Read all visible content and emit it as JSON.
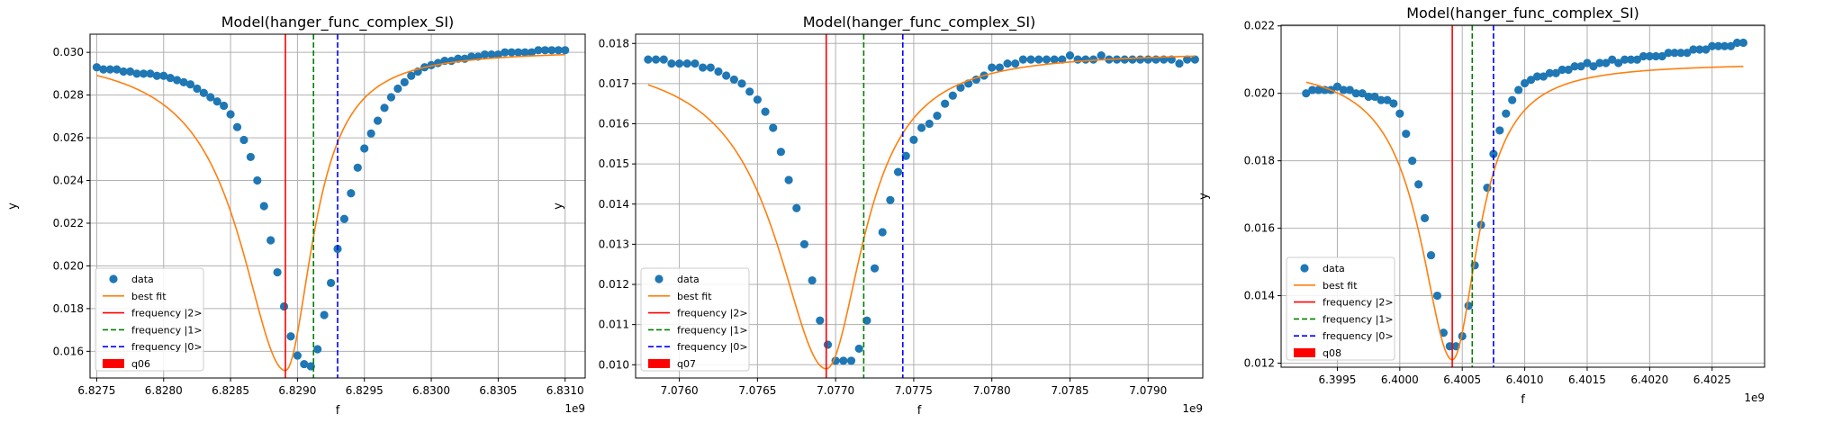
{
  "chart_data": [
    {
      "type": "scatter",
      "title": "Model(hanger_func_complex_SI)",
      "xlabel": "f",
      "ylabel": "y",
      "offset_label": "1e9",
      "xlim": [
        6.82745,
        6.83115
      ],
      "ylim": [
        0.01475,
        0.03085
      ],
      "xticks": [
        6.8275,
        6.828,
        6.8285,
        6.829,
        6.8295,
        6.83,
        6.8305,
        6.831
      ],
      "xtick_labels": [
        "6.8275",
        "6.8280",
        "6.8285",
        "6.8290",
        "6.8295",
        "6.8300",
        "6.8305",
        "6.8310"
      ],
      "yticks": [
        0.016,
        0.018,
        0.02,
        0.022,
        0.024,
        0.026,
        0.028,
        0.03
      ],
      "ytick_labels": [
        "0.016",
        "0.018",
        "0.020",
        "0.022",
        "0.024",
        "0.026",
        "0.028",
        "0.030"
      ],
      "grid": true,
      "legend_position": "lower-left",
      "legend": [
        {
          "label": "data",
          "kind": "marker",
          "color": "#1f77b4"
        },
        {
          "label": "best fit",
          "kind": "line",
          "color": "#ff7f0e"
        },
        {
          "label": "frequency |2>",
          "kind": "line",
          "color": "#ff0000"
        },
        {
          "label": "frequency |1>",
          "kind": "dashed",
          "color": "#008000"
        },
        {
          "label": "frequency |0>",
          "kind": "dashed",
          "color": "#0000ff"
        },
        {
          "label": "q06",
          "kind": "patch",
          "color": "#ff0000"
        }
      ],
      "vlines": [
        {
          "name": "frequency |2>",
          "x": 6.82891,
          "color": "#ff0000",
          "dashed": false
        },
        {
          "name": "frequency |1>",
          "x": 6.82912,
          "color": "#008000",
          "dashed": true
        },
        {
          "name": "frequency |0>",
          "x": 6.8293,
          "color": "#0000ff",
          "dashed": true
        }
      ],
      "fit": {
        "f0": 6.82891,
        "ymin": 0.0151,
        "ymax": 0.0301,
        "hw": 0.00033,
        "skew": 0.25,
        "lin_left": 0.0,
        "lin_right": 0.0,
        "x_start": 6.8275,
        "x_end": 6.831
      },
      "data": {
        "x": [
          6.8275,
          6.82755,
          6.8276,
          6.82765,
          6.8277,
          6.82775,
          6.8278,
          6.82785,
          6.8279,
          6.82795,
          6.828,
          6.82805,
          6.8281,
          6.82815,
          6.8282,
          6.82825,
          6.8283,
          6.82835,
          6.8284,
          6.82845,
          6.8285,
          6.82855,
          6.8286,
          6.82865,
          6.8287,
          6.82875,
          6.8288,
          6.82885,
          6.8289,
          6.82895,
          6.829,
          6.82905,
          6.8291,
          6.82915,
          6.8292,
          6.82925,
          6.8293,
          6.82935,
          6.8294,
          6.82945,
          6.8295,
          6.82955,
          6.8296,
          6.82965,
          6.8297,
          6.82975,
          6.8298,
          6.82985,
          6.8299,
          6.82995,
          6.83,
          6.83005,
          6.8301,
          6.83015,
          6.8302,
          6.83025,
          6.8303,
          6.83035,
          6.8304,
          6.83045,
          6.8305,
          6.83055,
          6.8306,
          6.83065,
          6.8307,
          6.83075,
          6.8308,
          6.83085,
          6.8309,
          6.83095,
          6.831
        ],
        "y": [
          0.0293,
          0.0292,
          0.0292,
          0.0292,
          0.0291,
          0.0291,
          0.029,
          0.029,
          0.029,
          0.0289,
          0.0289,
          0.0288,
          0.0287,
          0.0286,
          0.0285,
          0.0283,
          0.0281,
          0.0279,
          0.0277,
          0.0275,
          0.0271,
          0.0265,
          0.0259,
          0.0251,
          0.024,
          0.0228,
          0.0212,
          0.0197,
          0.0181,
          0.0167,
          0.0158,
          0.0154,
          0.0153,
          0.0161,
          0.0177,
          0.0192,
          0.0208,
          0.0222,
          0.0234,
          0.0246,
          0.0255,
          0.0262,
          0.0268,
          0.0274,
          0.0279,
          0.0283,
          0.0286,
          0.0289,
          0.0291,
          0.0293,
          0.0294,
          0.0295,
          0.0296,
          0.0296,
          0.0297,
          0.0297,
          0.0298,
          0.0298,
          0.0299,
          0.0299,
          0.0299,
          0.03,
          0.03,
          0.03,
          0.03,
          0.03,
          0.0301,
          0.0301,
          0.0301,
          0.0301,
          0.0301
        ]
      }
    },
    {
      "type": "scatter",
      "title": "Model(hanger_func_complex_SI)",
      "xlabel": "f",
      "ylabel": "y",
      "offset_label": "1e9",
      "xlim": [
        7.07572,
        7.07935
      ],
      "ylim": [
        0.00967,
        0.01823
      ],
      "xticks": [
        7.076,
        7.0765,
        7.077,
        7.0775,
        7.078,
        7.0785,
        7.079
      ],
      "xtick_labels": [
        "7.0760",
        "7.0765",
        "7.0770",
        "7.0775",
        "7.0780",
        "7.0785",
        "7.0790"
      ],
      "yticks": [
        0.01,
        0.011,
        0.012,
        0.013,
        0.014,
        0.015,
        0.016,
        0.017,
        0.018
      ],
      "ytick_labels": [
        "0.010",
        "0.011",
        "0.012",
        "0.013",
        "0.014",
        "0.015",
        "0.016",
        "0.017",
        "0.018"
      ],
      "grid": true,
      "legend_position": "lower-left",
      "legend": [
        {
          "label": "data",
          "kind": "marker",
          "color": "#1f77b4"
        },
        {
          "label": "best fit",
          "kind": "line",
          "color": "#ff7f0e"
        },
        {
          "label": "frequency |2>",
          "kind": "line",
          "color": "#ff0000"
        },
        {
          "label": "frequency |1>",
          "kind": "dashed",
          "color": "#008000"
        },
        {
          "label": "frequency |0>",
          "kind": "dashed",
          "color": "#0000ff"
        },
        {
          "label": "q07",
          "kind": "patch",
          "color": "#ff0000"
        }
      ],
      "vlines": [
        {
          "name": "frequency |2>",
          "x": 7.07694,
          "color": "#ff0000",
          "dashed": false
        },
        {
          "name": "frequency |1>",
          "x": 7.07718,
          "color": "#008000",
          "dashed": true
        },
        {
          "name": "frequency |0>",
          "x": 7.07743,
          "color": "#0000ff",
          "dashed": true
        }
      ],
      "fit": {
        "f0": 7.07694,
        "ymin": 0.0099,
        "ymax": 0.0178,
        "hw": 0.00034,
        "skew": 0.15,
        "lin_left": 0.0,
        "lin_right": 0.0,
        "x_start": 7.0758,
        "x_end": 7.0793
      },
      "data": {
        "x": [
          7.0758,
          7.07585,
          7.0759,
          7.07595,
          7.076,
          7.07605,
          7.0761,
          7.07615,
          7.0762,
          7.07625,
          7.0763,
          7.07635,
          7.0764,
          7.07645,
          7.0765,
          7.07655,
          7.0766,
          7.07665,
          7.0767,
          7.07675,
          7.0768,
          7.07685,
          7.0769,
          7.07695,
          7.077,
          7.07705,
          7.0771,
          7.07715,
          7.0772,
          7.07725,
          7.0773,
          7.07735,
          7.0774,
          7.07745,
          7.0775,
          7.07755,
          7.0776,
          7.07765,
          7.0777,
          7.07775,
          7.0778,
          7.07785,
          7.0779,
          7.07795,
          7.078,
          7.07805,
          7.0781,
          7.07815,
          7.0782,
          7.07825,
          7.0783,
          7.07835,
          7.0784,
          7.07845,
          7.0785,
          7.07855,
          7.0786,
          7.07865,
          7.0787,
          7.07875,
          7.0788,
          7.07885,
          7.0789,
          7.07895,
          7.079,
          7.07905,
          7.0791,
          7.07915,
          7.0792,
          7.07925,
          7.0793
        ],
        "y": [
          0.0176,
          0.0176,
          0.0176,
          0.0175,
          0.0175,
          0.0175,
          0.0175,
          0.0174,
          0.0174,
          0.0173,
          0.0172,
          0.0171,
          0.017,
          0.0168,
          0.0166,
          0.0163,
          0.0159,
          0.0153,
          0.0146,
          0.0139,
          0.013,
          0.0121,
          0.0111,
          0.0105,
          0.0101,
          0.0101,
          0.0101,
          0.0104,
          0.0111,
          0.0124,
          0.0133,
          0.0141,
          0.0148,
          0.0152,
          0.0156,
          0.0159,
          0.016,
          0.0162,
          0.0165,
          0.0167,
          0.0169,
          0.017,
          0.0171,
          0.0172,
          0.0174,
          0.0174,
          0.0175,
          0.0175,
          0.0176,
          0.0176,
          0.0176,
          0.0176,
          0.0176,
          0.0176,
          0.0177,
          0.0176,
          0.0176,
          0.0176,
          0.0177,
          0.0176,
          0.0176,
          0.0176,
          0.0176,
          0.0176,
          0.0176,
          0.0176,
          0.0176,
          0.0176,
          0.0175,
          0.0176,
          0.0176
        ]
      }
    },
    {
      "type": "scatter",
      "title": "Model(hanger_func_complex_SI)",
      "xlabel": "f",
      "ylabel": "y",
      "offset_label": "1e9",
      "xlim": [
        6.39905,
        6.40292
      ],
      "ylim": [
        0.01188,
        0.02202
      ],
      "xticks": [
        6.3995,
        6.4,
        6.4005,
        6.401,
        6.4015,
        6.402,
        6.4025
      ],
      "xtick_labels": [
        "6.3995",
        "6.4000",
        "6.4005",
        "6.4010",
        "6.4015",
        "6.4020",
        "6.4025"
      ],
      "yticks": [
        0.012,
        0.014,
        0.016,
        0.018,
        0.02,
        0.022
      ],
      "ytick_labels": [
        "0.012",
        "0.014",
        "0.016",
        "0.018",
        "0.020",
        "0.022"
      ],
      "grid": true,
      "legend_position": "lower-left",
      "legend": [
        {
          "label": "data",
          "kind": "marker",
          "color": "#1f77b4"
        },
        {
          "label": "best fit",
          "kind": "line",
          "color": "#ff7f0e"
        },
        {
          "label": "frequency |2>",
          "kind": "line",
          "color": "#ff0000"
        },
        {
          "label": "frequency |1>",
          "kind": "dashed",
          "color": "#008000"
        },
        {
          "label": "frequency |0>",
          "kind": "dashed",
          "color": "#0000ff"
        },
        {
          "label": "q08",
          "kind": "patch",
          "color": "#ff0000"
        }
      ],
      "vlines": [
        {
          "name": "frequency |2>",
          "x": 6.40042,
          "color": "#ff0000",
          "dashed": false
        },
        {
          "name": "frequency |1>",
          "x": 6.40058,
          "color": "#008000",
          "dashed": true
        },
        {
          "name": "frequency |0>",
          "x": 6.40075,
          "color": "#0000ff",
          "dashed": true
        }
      ],
      "fit": {
        "f0": 6.40042,
        "ymin": 0.0121,
        "ymax": 0.0209,
        "hw": 0.00028,
        "skew": 0.1,
        "lin_left": 0.0,
        "lin_right": 0.0,
        "x_start": 6.39925,
        "x_end": 6.40275
      },
      "data": {
        "x": [
          6.39925,
          6.3993,
          6.39935,
          6.3994,
          6.39945,
          6.3995,
          6.39955,
          6.3996,
          6.39965,
          6.3997,
          6.39975,
          6.3998,
          6.39985,
          6.3999,
          6.39995,
          6.4,
          6.40005,
          6.4001,
          6.40015,
          6.4002,
          6.40025,
          6.4003,
          6.40035,
          6.4004,
          6.40045,
          6.4005,
          6.40055,
          6.4006,
          6.40065,
          6.4007,
          6.40075,
          6.4008,
          6.40085,
          6.4009,
          6.40095,
          6.401,
          6.40105,
          6.4011,
          6.40115,
          6.4012,
          6.40125,
          6.4013,
          6.40135,
          6.4014,
          6.40145,
          6.4015,
          6.40155,
          6.4016,
          6.40165,
          6.4017,
          6.40175,
          6.4018,
          6.40185,
          6.4019,
          6.40195,
          6.402,
          6.40205,
          6.4021,
          6.40215,
          6.4022,
          6.40225,
          6.4023,
          6.40235,
          6.4024,
          6.40245,
          6.4025,
          6.40255,
          6.4026,
          6.40265,
          6.4027,
          6.40275
        ],
        "y": [
          0.02,
          0.0201,
          0.0201,
          0.0201,
          0.0201,
          0.0202,
          0.0201,
          0.0201,
          0.02,
          0.02,
          0.0199,
          0.0199,
          0.0198,
          0.0198,
          0.0197,
          0.0194,
          0.0188,
          0.018,
          0.0173,
          0.0163,
          0.0152,
          0.014,
          0.0129,
          0.0125,
          0.0125,
          0.0128,
          0.0137,
          0.0149,
          0.0161,
          0.0172,
          0.0182,
          0.0189,
          0.0194,
          0.0198,
          0.0201,
          0.0203,
          0.0204,
          0.0205,
          0.0205,
          0.0206,
          0.0206,
          0.0207,
          0.0207,
          0.0208,
          0.0208,
          0.0209,
          0.0208,
          0.0209,
          0.0209,
          0.021,
          0.0209,
          0.021,
          0.021,
          0.021,
          0.0211,
          0.0211,
          0.0211,
          0.0211,
          0.0212,
          0.0212,
          0.0212,
          0.0212,
          0.0213,
          0.0213,
          0.0213,
          0.0214,
          0.0214,
          0.0214,
          0.0214,
          0.0215,
          0.0215
        ]
      }
    }
  ]
}
